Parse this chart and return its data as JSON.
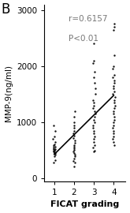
{
  "title_label": "B",
  "xlabel": "FICAT grading",
  "ylabel": "MMP-9(ng/ml)",
  "annotation_line1": "r=0.6157",
  "annotation_line2": "P<0.01",
  "xlim": [
    0.5,
    4.6
  ],
  "ylim": [
    -50,
    3100
  ],
  "yticks": [
    0,
    1000,
    2000,
    3000
  ],
  "xticks": [
    1,
    2,
    3,
    4
  ],
  "scatter_color": "#111111",
  "line_color": "#000000",
  "annotation_color": "#777777",
  "background_color": "#ffffff",
  "groups": {
    "1": [
      280,
      330,
      400,
      430,
      450,
      460,
      470,
      480,
      490,
      500,
      510,
      520,
      530,
      540,
      560,
      570,
      590,
      610,
      650,
      700,
      750,
      850,
      950
    ],
    "2": [
      220,
      280,
      320,
      360,
      400,
      430,
      450,
      480,
      510,
      540,
      570,
      600,
      640,
      680,
      720,
      760,
      800,
      850,
      900,
      950,
      1000,
      1100,
      1200
    ],
    "3": [
      480,
      500,
      550,
      600,
      650,
      700,
      750,
      800,
      850,
      900,
      950,
      1000,
      1050,
      1100,
      1150,
      1200,
      1250,
      1300,
      1350,
      1400,
      1500,
      1600,
      1700,
      1800,
      1900,
      2050,
      2100,
      2400
    ],
    "4": [
      600,
      650,
      700,
      750,
      800,
      850,
      900,
      950,
      1000,
      1050,
      1100,
      1150,
      1200,
      1250,
      1300,
      1350,
      1400,
      1450,
      1500,
      1550,
      1600,
      1650,
      1700,
      1750,
      1800,
      1850,
      1950,
      2000,
      2200,
      2650,
      2700,
      2750
    ]
  },
  "reg_line": {
    "x": [
      1,
      4
    ],
    "y": [
      430,
      1480
    ]
  },
  "jitter_scale": 0.06,
  "figsize": [
    1.65,
    2.7
  ],
  "dpi": 100
}
